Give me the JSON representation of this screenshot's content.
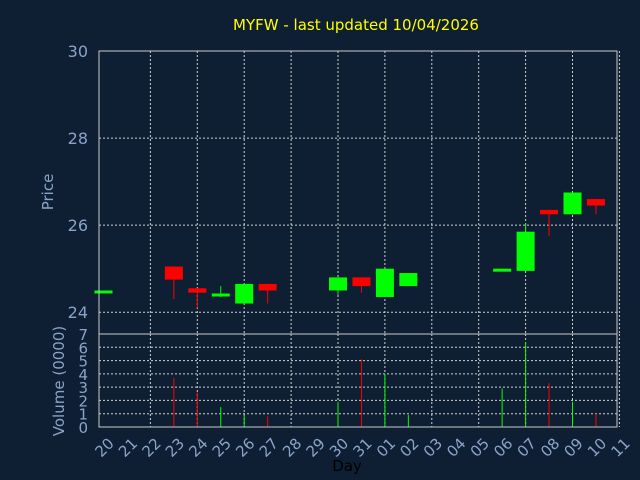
{
  "chart_data": {
    "type": "candlestick",
    "title": "MYFW - last updated 10/04/2026",
    "price_panel": {
      "ylabel": "Price",
      "ylim": [
        23.5,
        30
      ],
      "yticks": [
        "30",
        "28",
        "26",
        "24"
      ]
    },
    "volume_panel": {
      "ylabel": "Volume (0000)",
      "ylim": [
        0,
        7
      ],
      "yticks": [
        "7",
        "6",
        "5",
        "4",
        "3",
        "2",
        "1",
        "0"
      ]
    },
    "xlabel": "Day",
    "x_ticks": [
      "20",
      "21",
      "22",
      "23",
      "24",
      "25",
      "26",
      "27",
      "28",
      "29",
      "30",
      "31",
      "01",
      "02",
      "03",
      "04",
      "05",
      "06",
      "07",
      "08",
      "09",
      "10",
      "11"
    ],
    "grid_days": [
      "22",
      "24",
      "26",
      "28",
      "30",
      "01",
      "03",
      "05",
      "07",
      "09",
      "11"
    ],
    "colors": {
      "up": "#00ff00",
      "down": "#ff0000",
      "title": "#ffff00",
      "background": "#0f1f33"
    },
    "candles": [
      {
        "day": "20",
        "open": 24.45,
        "close": 24.5,
        "high": 24.5,
        "low": 24.45,
        "volume": 0
      },
      {
        "day": "23",
        "open": 25.05,
        "close": 24.75,
        "high": 25.05,
        "low": 24.3,
        "volume": 3.7
      },
      {
        "day": "24",
        "open": 24.55,
        "close": 24.45,
        "high": 24.55,
        "low": 24.1,
        "volume": 2.6
      },
      {
        "day": "25",
        "open": 24.38,
        "close": 24.43,
        "high": 24.6,
        "low": 24.35,
        "volume": 1.5
      },
      {
        "day": "26",
        "open": 24.2,
        "close": 24.65,
        "high": 24.65,
        "low": 24.2,
        "volume": 0.9
      },
      {
        "day": "27",
        "open": 24.65,
        "close": 24.5,
        "high": 24.65,
        "low": 24.2,
        "volume": 0.8
      },
      {
        "day": "30",
        "open": 24.5,
        "close": 24.8,
        "high": 24.8,
        "low": 24.4,
        "volume": 1.9
      },
      {
        "day": "31",
        "open": 24.8,
        "close": 24.6,
        "high": 24.8,
        "low": 24.45,
        "volume": 5.1
      },
      {
        "day": "01",
        "open": 24.35,
        "close": 25.0,
        "high": 25.0,
        "low": 24.35,
        "volume": 4.0
      },
      {
        "day": "02",
        "open": 24.6,
        "close": 24.9,
        "high": 24.9,
        "low": 24.6,
        "volume": 0.9
      },
      {
        "day": "06",
        "open": 24.95,
        "close": 25.0,
        "high": 25.0,
        "low": 24.95,
        "volume": 2.9
      },
      {
        "day": "07",
        "open": 24.95,
        "close": 25.85,
        "high": 26.05,
        "low": 24.95,
        "volume": 6.4
      },
      {
        "day": "08",
        "open": 26.35,
        "close": 26.25,
        "high": 26.35,
        "low": 25.75,
        "volume": 3.3
      },
      {
        "day": "09",
        "open": 26.25,
        "close": 26.75,
        "high": 26.75,
        "low": 26.25,
        "volume": 1.9
      },
      {
        "day": "10",
        "open": 26.6,
        "close": 26.45,
        "high": 26.6,
        "low": 26.25,
        "volume": 1.0
      }
    ]
  }
}
